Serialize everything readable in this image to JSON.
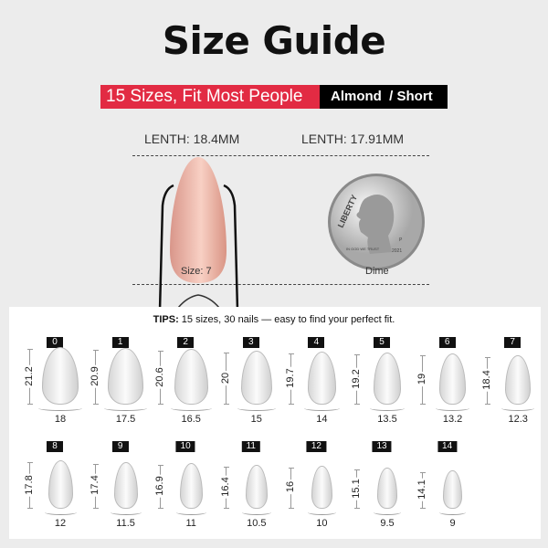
{
  "title": "Size Guide",
  "banner": {
    "tagline": "15 Sizes, Fit Most People",
    "shape": "Almond",
    "length_type": "/ Short",
    "accent": "#e22b43"
  },
  "comparison": {
    "nail_length": "LENTH: 18.4MM",
    "dime_length": "LENTH: 17.91MM",
    "nail_caption": "Size: 7",
    "dime_caption": "Dime",
    "nail_color": "#f0b4a4",
    "dime_text": {
      "liberty": "LIBERTY",
      "motto": "IN GOD WE TRUST",
      "year": "2021",
      "mint": "P"
    }
  },
  "tips": {
    "label": "TIPS:",
    "text": " 15 sizes, 30 nails — easy to find your perfect fit."
  },
  "sizes": [
    {
      "size": "0",
      "length": "21.2",
      "width": "18"
    },
    {
      "size": "1",
      "length": "20.9",
      "width": "17.5"
    },
    {
      "size": "2",
      "length": "20.6",
      "width": "16.5"
    },
    {
      "size": "3",
      "length": "20",
      "width": "15"
    },
    {
      "size": "4",
      "length": "19.7",
      "width": "14"
    },
    {
      "size": "5",
      "length": "19.2",
      "width": "13.5"
    },
    {
      "size": "6",
      "length": "19",
      "width": "13.2"
    },
    {
      "size": "7",
      "length": "18.4",
      "width": "12.3"
    },
    {
      "size": "8",
      "length": "17.8",
      "width": "12"
    },
    {
      "size": "9",
      "length": "17.4",
      "width": "11.5"
    },
    {
      "size": "10",
      "length": "16.9",
      "width": "11"
    },
    {
      "size": "11",
      "length": "16.4",
      "width": "10.5"
    },
    {
      "size": "12",
      "length": "16",
      "width": "10"
    },
    {
      "size": "13",
      "length": "15.1",
      "width": "9.5"
    },
    {
      "size": "14",
      "length": "14.1",
      "width": "9"
    }
  ]
}
